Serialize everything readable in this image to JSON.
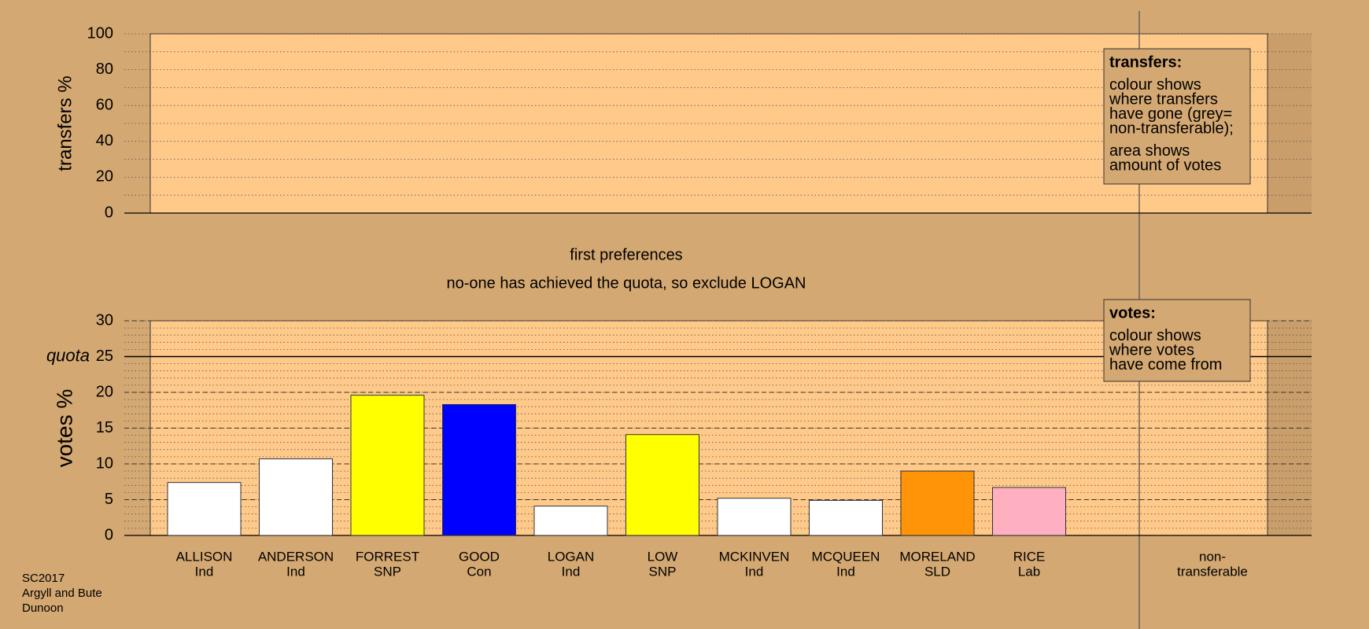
{
  "chart_data": [
    {
      "type": "bar",
      "ylabel": "transfers %",
      "ylim": [
        0,
        100
      ],
      "yticks": [
        0,
        20,
        40,
        60,
        80,
        100
      ],
      "minor_step": 10,
      "grid": true,
      "categories": [],
      "values": [],
      "legend": {
        "title": "transfers:",
        "groups": [
          [
            "colour shows",
            "where transfers",
            "have gone (grey=",
            "non-transferable);"
          ],
          [
            "area shows",
            "amount of votes"
          ]
        ]
      }
    },
    {
      "type": "bar",
      "ylabel": "votes %",
      "ylim": [
        0,
        30
      ],
      "yticks": [
        0,
        5,
        10,
        15,
        20,
        25,
        30
      ],
      "minor_step": 1,
      "grid": true,
      "annotations": [
        "first preferences",
        "no-one has achieved the quota, so exclude LOGAN"
      ],
      "quota": 25,
      "quota_label": "quota",
      "categories": [
        "ALLISON",
        "ANDERSON",
        "FORREST",
        "GOOD",
        "LOGAN",
        "LOW",
        "MCKINVEN",
        "MCQUEEN",
        "MORELAND",
        "RICE"
      ],
      "parties": [
        "Ind",
        "Ind",
        "SNP",
        "Con",
        "Ind",
        "SNP",
        "Ind",
        "Ind",
        "SLD",
        "Lab"
      ],
      "values": [
        7.4,
        10.7,
        19.6,
        18.3,
        4.1,
        14.1,
        5.2,
        4.9,
        9.0,
        6.7
      ],
      "colors": [
        "#ffffff",
        "#ffffff",
        "#ffff00",
        "#0000ff",
        "#ffffff",
        "#ffff00",
        "#ffffff",
        "#ffffff",
        "#ff9408",
        "#ffb0c0"
      ],
      "extra_label": [
        "non-",
        "transferable"
      ],
      "legend": {
        "title": "votes:",
        "groups": [
          [
            "colour shows",
            "where votes",
            "have come from"
          ]
        ]
      }
    }
  ],
  "footer": [
    "SC2017",
    "Argyll and Bute",
    "Dunoon"
  ]
}
